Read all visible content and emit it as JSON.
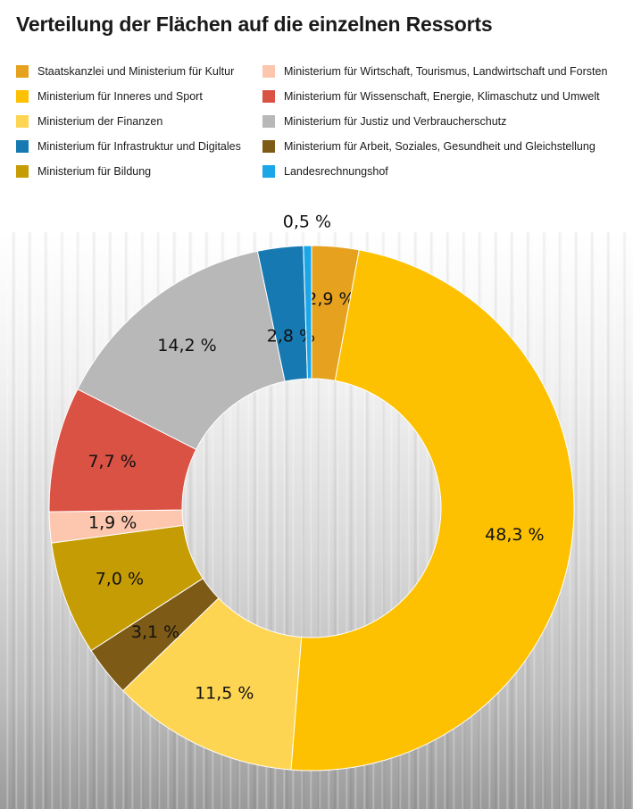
{
  "title": "Verteilung der Flächen auf die einzelnen Ressorts",
  "chart_data": {
    "type": "pie",
    "donut": true,
    "legend_position": "top",
    "series": [
      {
        "name": "Staatskanzlei und Ministerium für Kultur",
        "value": 2.9,
        "label": "2,9 %",
        "color": "#E6A11E"
      },
      {
        "name": "Ministerium für Inneres und Sport",
        "value": 48.3,
        "label": "48,3 %",
        "color": "#FDC101"
      },
      {
        "name": "Ministerium der Finanzen",
        "value": 11.5,
        "label": "11,5 %",
        "color": "#FDD552"
      },
      {
        "name": "Ministerium für Arbeit, Soziales, Gesundheit und Gleichstellung",
        "value": 3.1,
        "label": "3,1 %",
        "color": "#7D5A16"
      },
      {
        "name": "Ministerium für Bildung",
        "value": 7.0,
        "label": "7,0 %",
        "color": "#C69C05"
      },
      {
        "name": "Ministerium für Wirtschaft, Tourismus, Landwirtschaft und Forsten",
        "value": 1.9,
        "label": "1,9 %",
        "color": "#FDC6AE"
      },
      {
        "name": "Ministerium für Wissenschaft, Energie, Klimaschutz und Umwelt",
        "value": 7.7,
        "label": "7,7 %",
        "color": "#DA5244"
      },
      {
        "name": "Ministerium für Justiz und Verbraucherschutz",
        "value": 14.2,
        "label": "14,2 %",
        "color": "#B8B8B8"
      },
      {
        "name": "Ministerium für Infrastruktur und Digitales",
        "value": 2.8,
        "label": "2,8 %",
        "color": "#1679B1"
      },
      {
        "name": "Landesrechnungshof",
        "value": 0.5,
        "label": "0,5 %",
        "color": "#1BA6E8"
      }
    ]
  },
  "legend": [
    {
      "label": "Staatskanzlei und Ministerium für Kultur",
      "color": "#E6A11E"
    },
    {
      "label": "Ministerium für Wirtschaft, Tourismus, Landwirtschaft und Forsten",
      "color": "#FDC6AE"
    },
    {
      "label": "Ministerium für Inneres und Sport",
      "color": "#FDC101"
    },
    {
      "label": "Ministerium für Wissenschaft, Energie, Klimaschutz und Umwelt",
      "color": "#DA5244"
    },
    {
      "label": "Ministerium der Finanzen",
      "color": "#FDD552"
    },
    {
      "label": "Ministerium für Justiz und Verbraucherschutz",
      "color": "#B8B8B8"
    },
    {
      "label": "Ministerium für Infrastruktur und Digitales",
      "color": "#1679B1"
    },
    {
      "label": "Ministerium für Arbeit, Soziales, Gesundheit und Gleichstellung",
      "color": "#7D5A16"
    },
    {
      "label": "Ministerium für Bildung",
      "color": "#C69C05"
    },
    {
      "label": "Landesrechnungshof",
      "color": "#1BA6E8"
    }
  ]
}
